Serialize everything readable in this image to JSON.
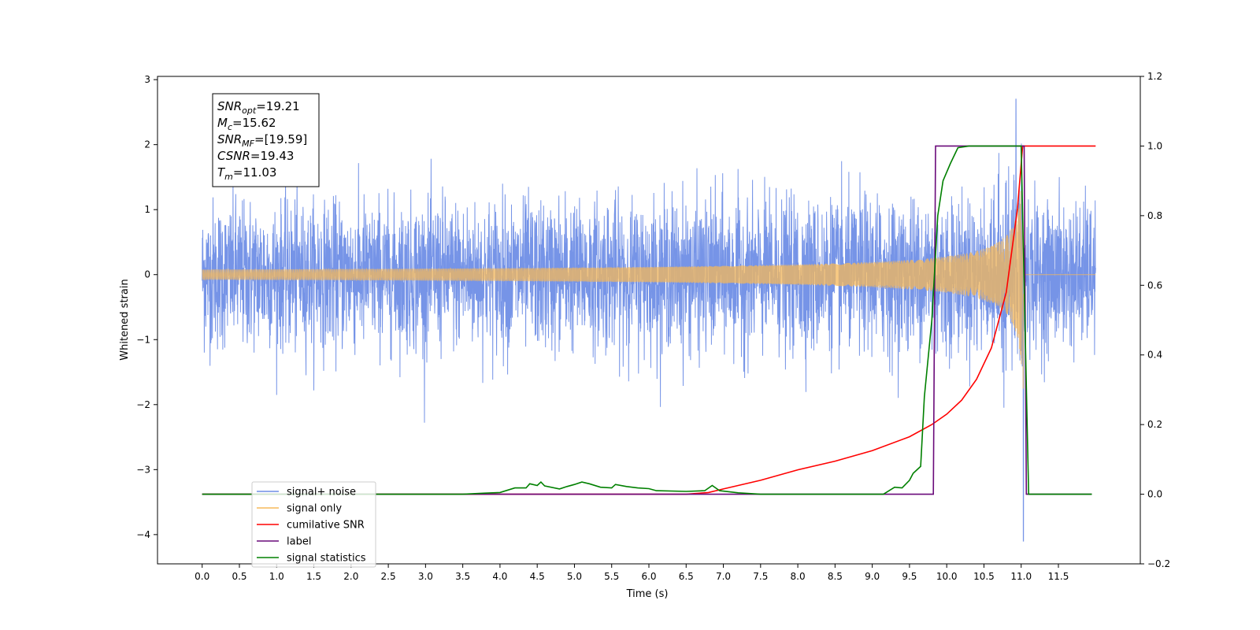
{
  "chart_data": {
    "type": "line",
    "xlabel": "Time (s)",
    "ylabel": "Whitened strain",
    "xlim": [
      -0.6,
      12.6
    ],
    "ylim": [
      -4.45,
      3.05
    ],
    "y2lim": [
      -0.2,
      1.2
    ],
    "xticks": [
      "0.0",
      "0.5",
      "1.0",
      "1.5",
      "2.0",
      "2.5",
      "3.0",
      "3.5",
      "4.0",
      "4.5",
      "5.0",
      "5.5",
      "6.0",
      "6.5",
      "7.0",
      "7.5",
      "8.0",
      "8.5",
      "9.0",
      "9.5",
      "10.0",
      "10.5",
      "11.0",
      "11.5"
    ],
    "xtick_values": [
      0,
      0.5,
      1,
      1.5,
      2,
      2.5,
      3,
      3.5,
      4,
      4.5,
      5,
      5.5,
      6,
      6.5,
      7,
      7.5,
      8,
      8.5,
      9,
      9.5,
      10,
      10.5,
      11,
      11.5
    ],
    "yticks": [
      "3",
      "2",
      "1",
      "0",
      "−1",
      "−2",
      "−3",
      "−4"
    ],
    "ytick_values": [
      3,
      2,
      1,
      0,
      -1,
      -2,
      -3,
      -4
    ],
    "y2ticks": [
      "1.2",
      "1.0",
      "0.8",
      "0.6",
      "0.4",
      "0.2",
      "0.0",
      "−0.2"
    ],
    "y2tick_values": [
      1.2,
      1.0,
      0.8,
      0.6,
      0.4,
      0.2,
      0.0,
      -0.2
    ],
    "legend_position": "lower-left",
    "annotation": {
      "lines": [
        {
          "base": "SNR",
          "sub": "opt",
          "value": "=19.21"
        },
        {
          "base": "M",
          "sub": "c",
          "value": "=15.62"
        },
        {
          "base": "SNR",
          "sub": "MF",
          "value": "=[19.59]"
        },
        {
          "base": "CSNR",
          "sub": "",
          "value": "=19.43"
        },
        {
          "base": "T",
          "sub": "m",
          "value": "=11.03"
        }
      ]
    },
    "series": [
      {
        "name": "signal+ noise",
        "color": "#6f8ee6",
        "axis": "left",
        "envelope": {
          "t_start": 0.0,
          "t_end": 12.0,
          "noise_sigma": 0.55,
          "peak_max": 2.7,
          "peak_min": -4.1
        }
      },
      {
        "name": "signal only",
        "color": "#f5b85a",
        "axis": "left",
        "chirp": {
          "t_start": 0.0,
          "t_merge": 11.03,
          "t_end": 12.0,
          "peak_amplitude": 2.0
        }
      },
      {
        "name": "cumilative SNR",
        "color": "#ff0000",
        "axis": "right",
        "points": [
          [
            0,
            0
          ],
          [
            6.5,
            0
          ],
          [
            6.8,
            0.005
          ],
          [
            7.0,
            0.015
          ],
          [
            7.5,
            0.04
          ],
          [
            8.0,
            0.07
          ],
          [
            8.5,
            0.095
          ],
          [
            9.0,
            0.125
          ],
          [
            9.5,
            0.165
          ],
          [
            9.8,
            0.2
          ],
          [
            10.0,
            0.23
          ],
          [
            10.2,
            0.27
          ],
          [
            10.4,
            0.33
          ],
          [
            10.6,
            0.42
          ],
          [
            10.8,
            0.58
          ],
          [
            10.95,
            0.82
          ],
          [
            11.02,
            1.0
          ],
          [
            11.3,
            1.0
          ],
          [
            12.0,
            1.0
          ]
        ]
      },
      {
        "name": "label",
        "color": "#6a0a7a",
        "axis": "right",
        "points": [
          [
            0,
            0
          ],
          [
            9.82,
            0
          ],
          [
            9.85,
            1
          ],
          [
            11.04,
            1
          ],
          [
            11.07,
            0
          ],
          [
            11.95,
            0
          ]
        ]
      },
      {
        "name": "signal statistics",
        "color": "#008000",
        "axis": "right",
        "points": [
          [
            0,
            0
          ],
          [
            3.5,
            0
          ],
          [
            3.8,
            0.003
          ],
          [
            4.0,
            0.005
          ],
          [
            4.2,
            0.018
          ],
          [
            4.35,
            0.018
          ],
          [
            4.4,
            0.03
          ],
          [
            4.5,
            0.025
          ],
          [
            4.55,
            0.035
          ],
          [
            4.6,
            0.024
          ],
          [
            4.8,
            0.015
          ],
          [
            4.9,
            0.022
          ],
          [
            5.0,
            0.028
          ],
          [
            5.1,
            0.035
          ],
          [
            5.2,
            0.03
          ],
          [
            5.35,
            0.02
          ],
          [
            5.5,
            0.018
          ],
          [
            5.55,
            0.028
          ],
          [
            5.7,
            0.022
          ],
          [
            5.85,
            0.018
          ],
          [
            6.0,
            0.016
          ],
          [
            6.1,
            0.01
          ],
          [
            6.5,
            0.008
          ],
          [
            6.75,
            0.01
          ],
          [
            6.85,
            0.025
          ],
          [
            6.95,
            0.01
          ],
          [
            7.2,
            0.004
          ],
          [
            7.5,
            0
          ],
          [
            9.15,
            0
          ],
          [
            9.3,
            0.02
          ],
          [
            9.4,
            0.018
          ],
          [
            9.5,
            0.04
          ],
          [
            9.55,
            0.06
          ],
          [
            9.65,
            0.08
          ],
          [
            9.7,
            0.28
          ],
          [
            9.8,
            0.5
          ],
          [
            9.88,
            0.8
          ],
          [
            9.95,
            0.9
          ],
          [
            10.05,
            0.95
          ],
          [
            10.15,
            0.995
          ],
          [
            10.3,
            1.0
          ],
          [
            11.0,
            1.0
          ],
          [
            11.05,
            0.5
          ],
          [
            11.1,
            0.0
          ],
          [
            11.95,
            0
          ]
        ]
      }
    ]
  }
}
